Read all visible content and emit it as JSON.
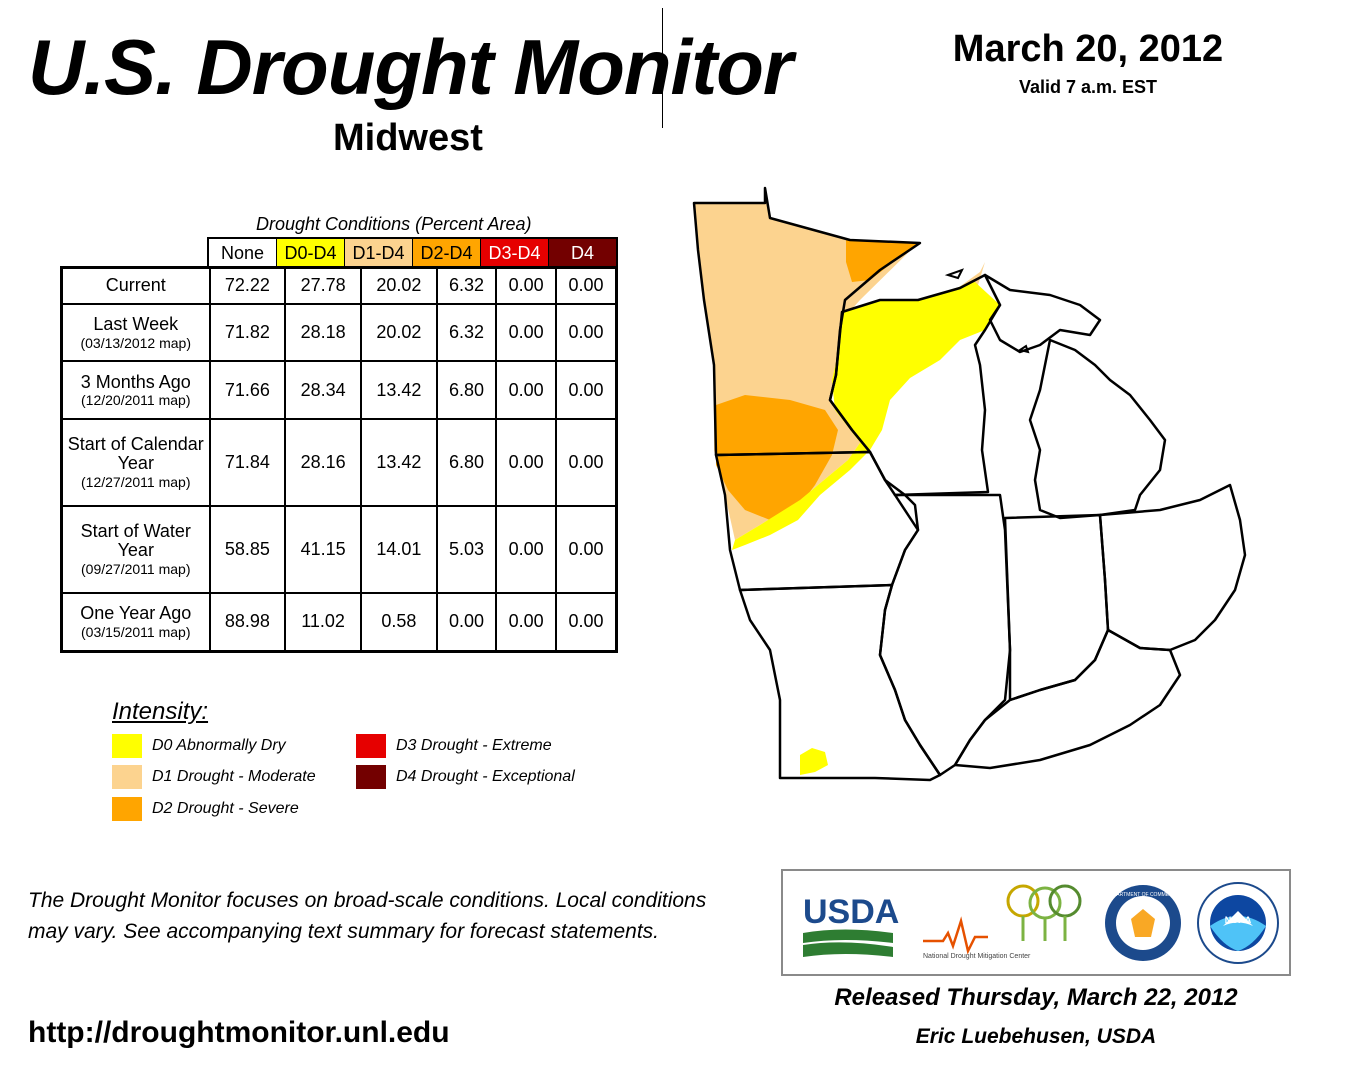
{
  "header": {
    "title": "U.S. Drought Monitor",
    "region": "Midwest",
    "date": "March 20, 2012",
    "valid": "Valid 7 a.m. EST"
  },
  "table": {
    "caption": "Drought Conditions (Percent Area)",
    "columns": [
      "None",
      "D0-D4",
      "D1-D4",
      "D2-D4",
      "D3-D4",
      "D4"
    ],
    "column_colors": [
      "#ffffff",
      "#ffff00",
      "#fcd38f",
      "#ffa500",
      "#e60000",
      "#730000"
    ],
    "column_text_colors": [
      "#000000",
      "#000000",
      "#000000",
      "#000000",
      "#ffffff",
      "#ffffff"
    ],
    "rows": [
      {
        "label": "Current",
        "sublabel": "",
        "values": [
          "72.22",
          "27.78",
          "20.02",
          "6.32",
          "0.00",
          "0.00"
        ]
      },
      {
        "label": "Last Week",
        "sublabel": "(03/13/2012 map)",
        "values": [
          "71.82",
          "28.18",
          "20.02",
          "6.32",
          "0.00",
          "0.00"
        ]
      },
      {
        "label": "3 Months Ago",
        "sublabel": "(12/20/2011 map)",
        "values": [
          "71.66",
          "28.34",
          "13.42",
          "6.80",
          "0.00",
          "0.00"
        ]
      },
      {
        "label": "Start of Calendar Year",
        "sublabel": "(12/27/2011 map)",
        "values": [
          "71.84",
          "28.16",
          "13.42",
          "6.80",
          "0.00",
          "0.00"
        ]
      },
      {
        "label": "Start of Water Year",
        "sublabel": "(09/27/2011 map)",
        "values": [
          "58.85",
          "41.15",
          "14.01",
          "5.03",
          "0.00",
          "0.00"
        ]
      },
      {
        "label": "One Year Ago",
        "sublabel": "(03/15/2011 map)",
        "values": [
          "88.98",
          "11.02",
          "0.58",
          "0.00",
          "0.00",
          "0.00"
        ]
      }
    ]
  },
  "legend": {
    "title": "Intensity:",
    "items": [
      {
        "label": "D0 Abnormally Dry",
        "color": "#ffff00"
      },
      {
        "label": "D1 Drought - Moderate",
        "color": "#fcd38f"
      },
      {
        "label": "D2 Drought - Severe",
        "color": "#ffa500"
      },
      {
        "label": "D3 Drought - Extreme",
        "color": "#e60000"
      },
      {
        "label": "D4 Drought - Exceptional",
        "color": "#730000"
      }
    ]
  },
  "note": "The Drought Monitor focuses on broad-scale conditions. Local conditions may vary. See accompanying text summary for forecast statements.",
  "url": "http://droughtmonitor.unl.edu",
  "logos": {
    "usda": "USDA",
    "ndmc": "National Drought Mitigation Center",
    "commerce": "DEPARTMENT OF COMMERCE",
    "noaa": "NOAA"
  },
  "footer": {
    "released": "Released Thursday, March 22, 2012",
    "author": "Eric Luebehusen, USDA"
  },
  "map": {
    "states": [
      "Minnesota",
      "Wisconsin",
      "Michigan",
      "Iowa",
      "Illinois",
      "Indiana",
      "Ohio",
      "Missouri",
      "Kentucky"
    ],
    "drought_areas": [
      "D0 Abnormally Dry",
      "D1 Drought - Moderate",
      "D2 Drought - Severe"
    ]
  }
}
